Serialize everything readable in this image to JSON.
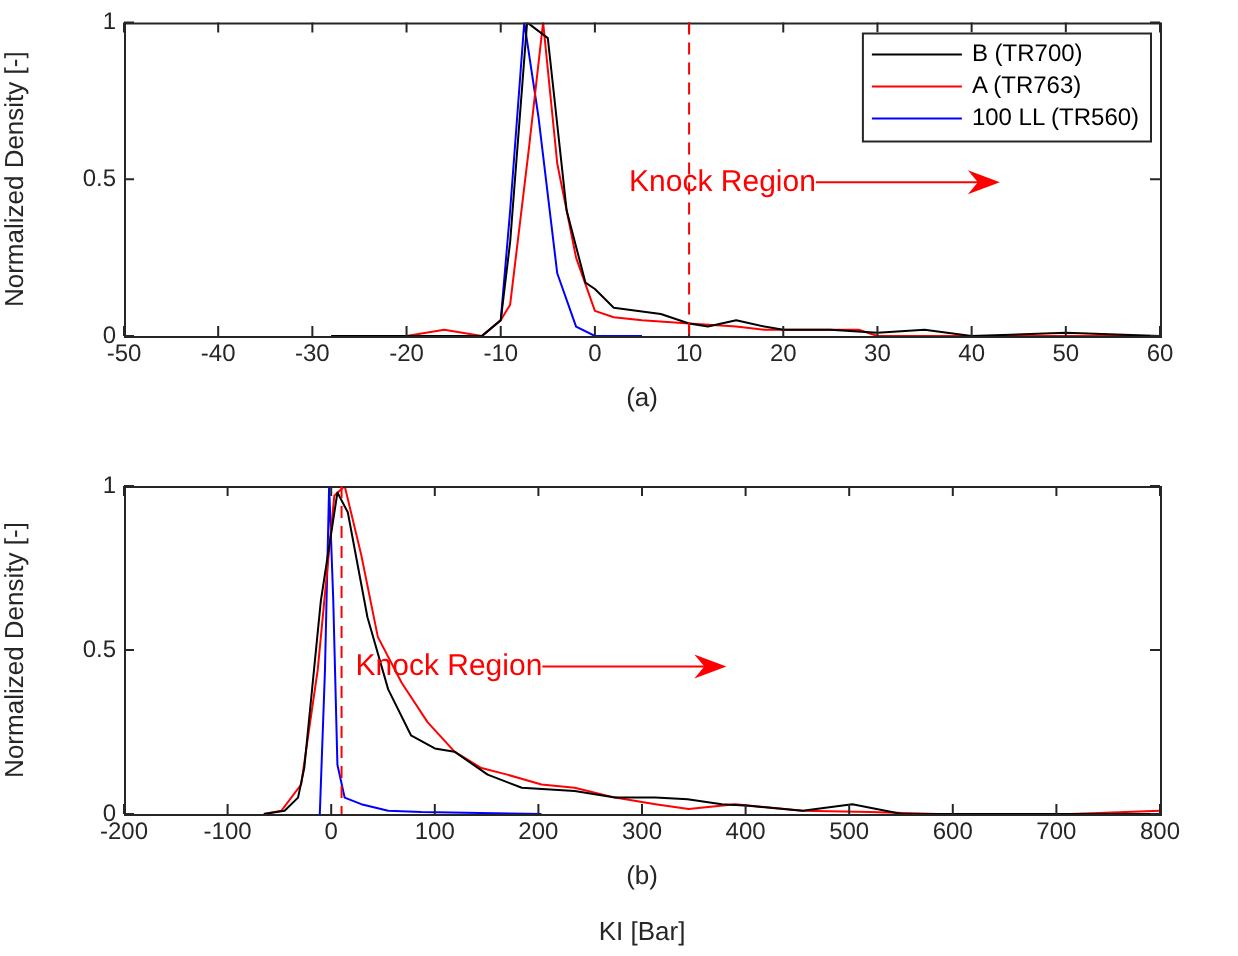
{
  "chart_data": [
    {
      "type": "line",
      "ylabel": "Normalized Density [-]",
      "xlim": [
        -50,
        60
      ],
      "xticks": [
        -50,
        -40,
        -30,
        -20,
        -10,
        0,
        10,
        20,
        30,
        40,
        50,
        60
      ],
      "ylim": [
        0,
        1
      ],
      "yticks": [
        0,
        0.5,
        1
      ],
      "grid": false,
      "legend": "top right",
      "marker": "none",
      "line_style": "solid",
      "series": [
        {
          "name": "B (TR700)",
          "color": "#000000",
          "x": [
            -28,
            -12,
            -10,
            -9,
            -7.2,
            -5,
            -3,
            -1,
            0,
            2,
            7,
            10,
            12,
            15,
            18,
            20,
            25,
            30,
            35,
            40,
            50,
            60
          ],
          "values": [
            0,
            0,
            0.05,
            0.3,
            1,
            0.95,
            0.4,
            0.17,
            0.15,
            0.09,
            0.07,
            0.04,
            0.03,
            0.05,
            0.03,
            0.02,
            0.02,
            0.01,
            0.02,
            0,
            0.01,
            0
          ]
        },
        {
          "name": "A (TR763)",
          "color": "#ff0000",
          "x": [
            -28,
            -20,
            -16,
            -12,
            -10,
            -9,
            -7,
            -5.5,
            -4,
            -2,
            0,
            2,
            5,
            10,
            15,
            18,
            20,
            25,
            28,
            30,
            40,
            60
          ],
          "values": [
            0,
            0,
            0.02,
            0,
            0.05,
            0.1,
            0.6,
            1,
            0.55,
            0.25,
            0.08,
            0.06,
            0.05,
            0.04,
            0.03,
            0.02,
            0.02,
            0.02,
            0.02,
            0,
            0,
            0
          ]
        },
        {
          "name": "100 LL (TR560)",
          "color": "#0000ff",
          "x": [
            -12,
            -10,
            -9,
            -7.5,
            -6,
            -4,
            -2,
            0,
            5
          ],
          "values": [
            0,
            0.05,
            0.4,
            1,
            0.7,
            0.2,
            0.03,
            0,
            0
          ]
        }
      ],
      "ref_lines": [
        {
          "axis": "x",
          "value": 10,
          "color": "#ff0000",
          "line_style": "dashed"
        }
      ],
      "annotations": [
        "Knock Region",
        "(a)"
      ]
    },
    {
      "type": "line",
      "xlabel": "KI [Bar]",
      "ylabel": "Normalized Density [-]",
      "xlim": [
        -200,
        800
      ],
      "xticks": [
        -200,
        -100,
        0,
        100,
        200,
        300,
        400,
        500,
        600,
        700,
        800
      ],
      "ylim": [
        0,
        1
      ],
      "yticks": [
        0,
        0.5,
        1
      ],
      "grid": false,
      "marker": "none",
      "line_style": "solid",
      "series": [
        {
          "color": "#000000",
          "x": [
            -65,
            -45,
            -32,
            -26,
            -10,
            6,
            16,
            35,
            55,
            77,
            100,
            119,
            151,
            184,
            235,
            274,
            313,
            344,
            377,
            403,
            455,
            503,
            551,
            800
          ],
          "values": [
            0,
            0.01,
            0.05,
            0.14,
            0.65,
            0.98,
            0.92,
            0.6,
            0.38,
            0.24,
            0.2,
            0.19,
            0.12,
            0.08,
            0.07,
            0.05,
            0.05,
            0.045,
            0.03,
            0.025,
            0.01,
            0.03,
            0,
            0
          ]
        },
        {
          "color": "#ff0000",
          "x": [
            -65,
            -48,
            -29,
            -13,
            -3,
            3,
            13,
            29,
            45,
            68,
            93,
            119,
            145,
            170,
            203,
            235,
            274,
            313,
            345,
            390,
            455,
            520,
            585,
            714,
            800
          ],
          "values": [
            0,
            0.01,
            0.09,
            0.44,
            0.77,
            0.97,
            1,
            0.79,
            0.54,
            0.4,
            0.28,
            0.19,
            0.14,
            0.12,
            0.09,
            0.08,
            0.05,
            0.03,
            0.015,
            0.03,
            0.01,
            0.006,
            0,
            0,
            0.01
          ]
        },
        {
          "color": "#0000ff",
          "x": [
            -11,
            -6,
            -2,
            2,
            6,
            13,
            29,
            42,
            55,
            87,
            203
          ],
          "values": [
            0,
            0.44,
            1,
            0.65,
            0.15,
            0.05,
            0.03,
            0.02,
            0.01,
            0.006,
            0
          ]
        }
      ],
      "ref_lines": [
        {
          "axis": "x",
          "value": 10,
          "color": "#ff0000",
          "line_style": "dashed"
        }
      ],
      "annotations": [
        "Knock Region",
        "(b)"
      ]
    }
  ]
}
